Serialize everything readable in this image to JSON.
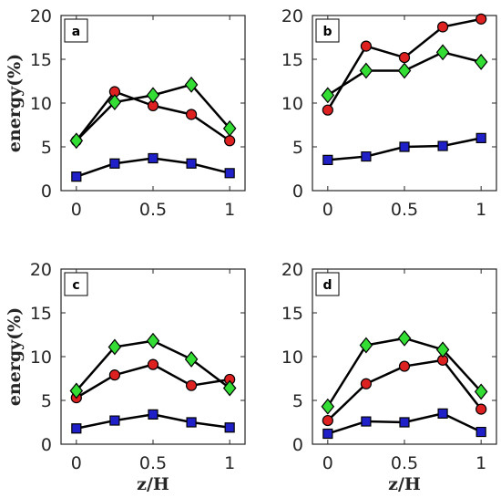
{
  "chart_data": [
    {
      "type": "line",
      "panel_label": "a",
      "x": [
        0,
        0.25,
        0.5,
        0.75,
        1
      ],
      "xlim": [
        -0.1,
        1.1
      ],
      "ylim": [
        0,
        20
      ],
      "xticks": [
        "0",
        "0.5",
        "1"
      ],
      "yticks": [
        "0",
        "5",
        "10",
        "15",
        "20"
      ],
      "xlabel": "",
      "ylabel": "energy(%)",
      "grid": false,
      "series": [
        {
          "marker": "square",
          "color": "#2020c8",
          "values": [
            1.6,
            3.1,
            3.7,
            3.1,
            2.0
          ]
        },
        {
          "marker": "circle",
          "color": "#dd2020",
          "values": [
            5.7,
            11.3,
            9.7,
            8.7,
            5.7
          ]
        },
        {
          "marker": "diamond",
          "color": "#33dd33",
          "values": [
            5.7,
            10.1,
            10.9,
            12.1,
            7.1
          ]
        }
      ]
    },
    {
      "type": "line",
      "panel_label": "b",
      "x": [
        0,
        0.25,
        0.5,
        0.75,
        1
      ],
      "xlim": [
        -0.1,
        1.1
      ],
      "ylim": [
        0,
        20
      ],
      "xticks": [
        "0",
        "0.5",
        "1"
      ],
      "yticks": [
        "0",
        "5",
        "10",
        "15",
        "20"
      ],
      "xlabel": "",
      "ylabel": "",
      "grid": false,
      "series": [
        {
          "marker": "square",
          "color": "#2020c8",
          "values": [
            3.5,
            3.9,
            5.0,
            5.1,
            6.0
          ]
        },
        {
          "marker": "circle",
          "color": "#dd2020",
          "values": [
            9.2,
            16.5,
            15.2,
            18.7,
            19.6
          ]
        },
        {
          "marker": "diamond",
          "color": "#33dd33",
          "values": [
            10.9,
            13.7,
            13.7,
            15.8,
            14.7
          ]
        }
      ]
    },
    {
      "type": "line",
      "panel_label": "c",
      "x": [
        0,
        0.25,
        0.5,
        0.75,
        1
      ],
      "xlim": [
        -0.1,
        1.1
      ],
      "ylim": [
        0,
        20
      ],
      "xticks": [
        "0",
        "0.5",
        "1"
      ],
      "yticks": [
        "0",
        "5",
        "10",
        "15",
        "20"
      ],
      "xlabel": "z/H",
      "ylabel": "energy(%)",
      "grid": false,
      "series": [
        {
          "marker": "square",
          "color": "#2020c8",
          "values": [
            1.8,
            2.7,
            3.4,
            2.5,
            1.9
          ]
        },
        {
          "marker": "circle",
          "color": "#dd2020",
          "values": [
            5.3,
            7.9,
            9.1,
            6.7,
            7.4
          ]
        },
        {
          "marker": "diamond",
          "color": "#33dd33",
          "values": [
            6.1,
            11.1,
            11.8,
            9.7,
            6.4
          ]
        }
      ]
    },
    {
      "type": "line",
      "panel_label": "d",
      "x": [
        0,
        0.25,
        0.5,
        0.75,
        1
      ],
      "xlim": [
        -0.1,
        1.1
      ],
      "ylim": [
        0,
        20
      ],
      "xticks": [
        "0",
        "0.5",
        "1"
      ],
      "yticks": [
        "0",
        "5",
        "10",
        "15",
        "20"
      ],
      "xlabel": "z/H",
      "ylabel": "",
      "grid": false,
      "series": [
        {
          "marker": "square",
          "color": "#2020c8",
          "values": [
            1.2,
            2.6,
            2.5,
            3.5,
            1.4
          ]
        },
        {
          "marker": "circle",
          "color": "#dd2020",
          "values": [
            2.7,
            6.9,
            8.9,
            9.6,
            4.0
          ]
        },
        {
          "marker": "diamond",
          "color": "#33dd33",
          "values": [
            4.3,
            11.3,
            12.1,
            10.8,
            6.0
          ]
        }
      ]
    }
  ]
}
